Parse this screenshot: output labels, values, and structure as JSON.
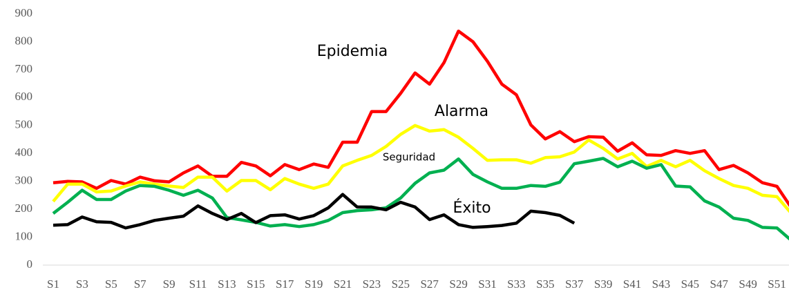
{
  "chart_data": {
    "type": "line",
    "categories": [
      "S1",
      null,
      "S3",
      null,
      "S5",
      null,
      "S7",
      null,
      "S9",
      null,
      "S11",
      null,
      "S13",
      null,
      "S15",
      null,
      "S17",
      null,
      "S19",
      null,
      "S21",
      null,
      "S23",
      null,
      "S25",
      null,
      "S27",
      null,
      "S29",
      null,
      "S31",
      null,
      "S33",
      null,
      "S35",
      null,
      "S37",
      null,
      "S39",
      null,
      "S41",
      null,
      "S43",
      null,
      "S45",
      null,
      "S47",
      null,
      "S49",
      null,
      "S51",
      null
    ],
    "series": [
      {
        "name": "Epidemia",
        "color": "#ff0000",
        "values": [
          295,
          300,
          298,
          275,
          303,
          290,
          315,
          302,
          298,
          330,
          355,
          318,
          318,
          368,
          355,
          320,
          360,
          342,
          362,
          350,
          440,
          440,
          550,
          550,
          615,
          688,
          648,
          725,
          838,
          800,
          730,
          648,
          610,
          502,
          452,
          478,
          442,
          460,
          458,
          408,
          438,
          395,
          393,
          410,
          400,
          410,
          342,
          357,
          330,
          295,
          282,
          205
        ]
      },
      {
        "name": "Alarma",
        "color": "#ffff00",
        "values": [
          228,
          290,
          290,
          262,
          265,
          283,
          298,
          290,
          283,
          278,
          315,
          315,
          265,
          303,
          303,
          270,
          310,
          290,
          275,
          290,
          355,
          375,
          393,
          425,
          468,
          500,
          480,
          485,
          458,
          418,
          375,
          377,
          377,
          365,
          385,
          388,
          405,
          448,
          418,
          380,
          400,
          353,
          375,
          352,
          375,
          338,
          310,
          285,
          275,
          250,
          245,
          185
        ]
      },
      {
        "name": "Seguridad",
        "color": "#00b050",
        "values": [
          185,
          225,
          268,
          235,
          235,
          265,
          285,
          282,
          268,
          250,
          268,
          240,
          170,
          162,
          153,
          140,
          145,
          138,
          145,
          160,
          188,
          195,
          198,
          205,
          240,
          293,
          330,
          340,
          380,
          325,
          298,
          275,
          275,
          285,
          282,
          297,
          363,
          372,
          382,
          352,
          372,
          347,
          360,
          283,
          280,
          230,
          208,
          168,
          160,
          135,
          133,
          88
        ]
      },
      {
        "name": "Éxito",
        "color": "#000000",
        "values": [
          143,
          145,
          172,
          155,
          153,
          133,
          145,
          160,
          168,
          175,
          212,
          185,
          163,
          185,
          152,
          177,
          180,
          165,
          177,
          205,
          253,
          208,
          208,
          198,
          225,
          208,
          163,
          180,
          145,
          135,
          138,
          142,
          150,
          193,
          188,
          178,
          150,
          null,
          null,
          null,
          null,
          null,
          null,
          null,
          null,
          null,
          null,
          null,
          null,
          null,
          null,
          null
        ]
      }
    ],
    "ylim": [
      0,
      900
    ],
    "yticks": [
      0,
      100,
      200,
      300,
      400,
      500,
      600,
      700,
      800,
      900
    ],
    "grid": false
  }
}
